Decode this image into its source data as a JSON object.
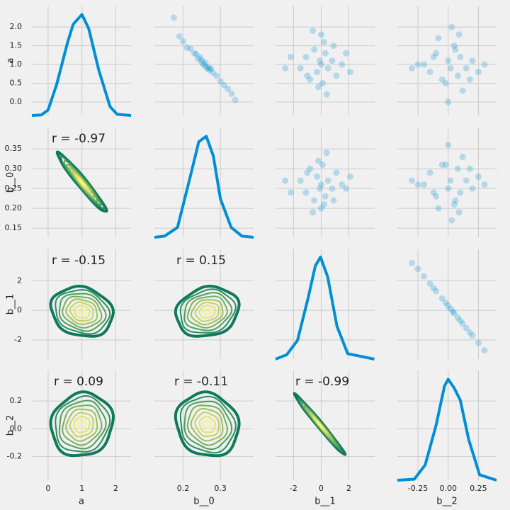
{
  "chart_data": {
    "type": "pairgrid",
    "kde_color": "#008fd5",
    "scatter_color": "#008fd5",
    "contour_colors": [
      "#0f7a5b",
      "#2a8d5c",
      "#4c9f5c",
      "#74b15c",
      "#9cc25e",
      "#c2d263",
      "#e3e46c",
      "#f6f57a"
    ],
    "grid": true,
    "variables": [
      {
        "name": "a",
        "xlim": [
          -0.48,
          2.45
        ],
        "xticks": [
          0,
          1,
          2
        ],
        "ylim": [
          -0.36,
          2.57
        ],
        "yticks": [
          {
            "value": 0,
            "label": "0.0"
          },
          0.5,
          {
            "value": 1,
            "label": "1.0"
          },
          1.5,
          {
            "value": 2,
            "label": "2.0"
          }
        ]
      },
      {
        "name": "b__0",
        "xlim": [
          0.123,
          0.389
        ],
        "xticks": [
          0.2,
          0.3
        ],
        "ylim": [
          0.127,
          0.404
        ],
        "yticks": [
          0.15,
          {
            "value": 0.2,
            "label": "0.20"
          },
          0.25,
          {
            "value": 0.3,
            "label": "0.30"
          },
          0.35
        ]
      },
      {
        "name": "b__1",
        "xlim": [
          -3.3,
          3.87
        ],
        "xticks": [
          -2,
          0,
          2
        ],
        "ylim": [
          -3.3,
          4.12
        ],
        "yticks": [
          -2,
          0,
          2
        ]
      },
      {
        "name": "b__2",
        "xlim": [
          -0.42,
          0.4
        ],
        "xticks": [
          -0.25,
          {
            "value": 0,
            "label": "0.00"
          },
          0.25
        ],
        "ylim": [
          -0.37,
          0.42
        ],
        "yticks": [
          -0.2,
          {
            "value": 0,
            "label": "0.0"
          },
          0.2
        ]
      }
    ],
    "panels": [
      {
        "type": "kde",
        "ylim": [
          0,
          1
        ],
        "x": [
          -0.48,
          -0.2,
          0,
          0.25,
          0.57,
          0.74,
          1.0,
          1.2,
          1.5,
          1.83,
          2.04,
          2.45
        ],
        "values": [
          0,
          0.005,
          0.05,
          0.28,
          0.66,
          0.83,
          0.92,
          0.79,
          0.41,
          0.08,
          0.01,
          0
        ]
      },
      {
        "type": "scatter",
        "x": [
          0.2,
          0.21,
          0.22,
          0.23,
          0.24,
          0.245,
          0.25,
          0.255,
          0.26,
          0.26,
          0.265,
          0.27,
          0.275,
          0.28,
          0.29,
          0.3,
          0.31,
          0.32,
          0.33,
          0.19,
          0.34,
          0.25,
          0.27,
          0.235,
          0.175
        ],
        "y": [
          1.62,
          1.45,
          1.42,
          1.3,
          1.15,
          1.2,
          1.05,
          1.0,
          0.95,
          1.05,
          0.9,
          0.85,
          0.88,
          0.78,
          0.7,
          0.55,
          0.45,
          0.35,
          0.22,
          1.75,
          0.05,
          1.12,
          0.92,
          1.28,
          2.25
        ]
      },
      {
        "type": "scatter",
        "x": [
          -1.5,
          -1.1,
          -0.8,
          -0.5,
          -0.3,
          -0.1,
          0,
          0.1,
          0.3,
          0.5,
          0.8,
          1.1,
          1.5,
          -2.2,
          2.1,
          -0.6,
          0.4,
          0.2,
          -0.2,
          0.9,
          -1.0,
          0.0,
          1.8,
          -2.6
        ],
        "y": [
          0.9,
          1.2,
          0.6,
          1.4,
          0.8,
          1.1,
          1.0,
          0.5,
          1.3,
          0.9,
          1.1,
          0.7,
          1.0,
          1.2,
          0.8,
          1.9,
          0.2,
          1.6,
          0.4,
          1.5,
          0.7,
          1.8,
          1.3,
          0.9
        ]
      },
      {
        "type": "scatter",
        "x": [
          -0.2,
          -0.15,
          -0.1,
          -0.05,
          0,
          0.02,
          0.05,
          0.08,
          0.1,
          0.15,
          0.2,
          -0.25,
          0.25,
          -0.08,
          0.12,
          0.03,
          -0.02,
          0.06,
          0.18,
          -0.12,
          0.0,
          0.3,
          -0.3,
          0.09
        ],
        "y": [
          1.0,
          0.8,
          1.3,
          0.6,
          1.1,
          0.9,
          1.5,
          0.7,
          1.2,
          0.9,
          1.1,
          1.0,
          0.8,
          1.7,
          0.3,
          2.0,
          0.5,
          1.4,
          0.6,
          1.2,
          0.0,
          1.0,
          0.9,
          1.8
        ]
      },
      {
        "type": "kde2d",
        "mean": [
          1.0,
          0.265
        ],
        "sd": [
          0.3,
          0.031
        ],
        "r": {
          "value": -0.97,
          "label": "r = -0.97"
        }
      },
      {
        "type": "kde",
        "ylim": [
          0,
          1
        ],
        "x": [
          0.123,
          0.15,
          0.185,
          0.219,
          0.242,
          0.262,
          0.281,
          0.3,
          0.329,
          0.358,
          0.389
        ],
        "values": [
          0,
          0.01,
          0.09,
          0.55,
          0.87,
          0.92,
          0.74,
          0.35,
          0.09,
          0.01,
          0
        ]
      },
      {
        "type": "scatter",
        "x": [
          -1.5,
          -1.1,
          -0.8,
          -0.5,
          -0.3,
          -0.1,
          0,
          0.1,
          0.3,
          0.5,
          0.8,
          1.1,
          1.5,
          -2.2,
          2.1,
          -0.6,
          0.4,
          0.2,
          -0.2,
          0.9,
          -1.0,
          0.0,
          1.8,
          -2.6
        ],
        "y": [
          0.27,
          0.24,
          0.3,
          0.22,
          0.28,
          0.25,
          0.26,
          0.31,
          0.23,
          0.27,
          0.25,
          0.29,
          0.26,
          0.24,
          0.28,
          0.19,
          0.34,
          0.21,
          0.32,
          0.22,
          0.29,
          0.2,
          0.25,
          0.27
        ]
      },
      {
        "type": "scatter",
        "x": [
          -0.2,
          -0.15,
          -0.1,
          -0.05,
          0,
          0.02,
          0.05,
          0.08,
          0.1,
          0.15,
          0.2,
          -0.25,
          0.25,
          -0.08,
          0.12,
          0.03,
          -0.02,
          0.06,
          0.18,
          -0.12,
          0.0,
          0.3,
          -0.3,
          0.09
        ],
        "y": [
          0.26,
          0.29,
          0.23,
          0.31,
          0.25,
          0.27,
          0.21,
          0.3,
          0.24,
          0.27,
          0.25,
          0.26,
          0.28,
          0.2,
          0.33,
          0.17,
          0.31,
          0.22,
          0.3,
          0.24,
          0.36,
          0.26,
          0.27,
          0.19
        ]
      },
      {
        "type": "kde2d",
        "mean": [
          1.0,
          -0.1
        ],
        "sd": [
          0.38,
          0.7
        ],
        "r": {
          "value": -0.15,
          "label": "r = -0.15"
        }
      },
      {
        "type": "kde2d",
        "mean": [
          0.265,
          -0.1
        ],
        "sd": [
          0.035,
          0.7
        ],
        "r": {
          "value": 0.15,
          "label": "r = 0.15"
        }
      },
      {
        "type": "kde",
        "ylim": [
          0,
          1
        ],
        "x": [
          -3.3,
          -2.49,
          -1.71,
          -0.94,
          -0.42,
          -0.05,
          0.47,
          1.14,
          1.92,
          3.85
        ],
        "values": [
          0,
          0.04,
          0.17,
          0.56,
          0.85,
          0.93,
          0.75,
          0.3,
          0.05,
          0
        ]
      },
      {
        "type": "scatter",
        "x": [
          -0.3,
          -0.25,
          -0.2,
          -0.15,
          -0.1,
          -0.05,
          0,
          0.02,
          0.05,
          0.08,
          0.1,
          0.15,
          0.2,
          0.25,
          0.3,
          -0.12,
          0.12,
          0.04,
          -0.02,
          0.18
        ],
        "y": [
          3.2,
          2.8,
          2.3,
          1.8,
          1.3,
          0.8,
          0.3,
          0.1,
          -0.2,
          -0.5,
          -0.7,
          -1.2,
          -1.7,
          -2.2,
          -2.7,
          1.5,
          -0.9,
          -0.1,
          0.5,
          -1.5
        ]
      },
      {
        "type": "kde2d",
        "mean": [
          1.0,
          0.03
        ],
        "sd": [
          0.38,
          0.095
        ],
        "r": {
          "value": 0.09,
          "label": "r = 0.09"
        }
      },
      {
        "type": "kde2d",
        "mean": [
          0.265,
          0.03
        ],
        "sd": [
          0.035,
          0.095
        ],
        "r": {
          "value": -0.11,
          "label": "r = -0.11"
        }
      },
      {
        "type": "kde2d",
        "mean": [
          -0.1,
          0.03
        ],
        "sd": [
          0.75,
          0.09
        ],
        "r": {
          "value": -0.99,
          "label": "r = -0.99"
        }
      },
      {
        "type": "kde",
        "ylim": [
          0,
          1
        ],
        "x": [
          -0.42,
          -0.28,
          -0.19,
          -0.1,
          -0.03,
          0,
          0.05,
          0.1,
          0.17,
          0.26,
          0.4
        ],
        "values": [
          0,
          0.01,
          0.14,
          0.5,
          0.86,
          0.92,
          0.84,
          0.73,
          0.37,
          0.05,
          0
        ]
      }
    ]
  }
}
